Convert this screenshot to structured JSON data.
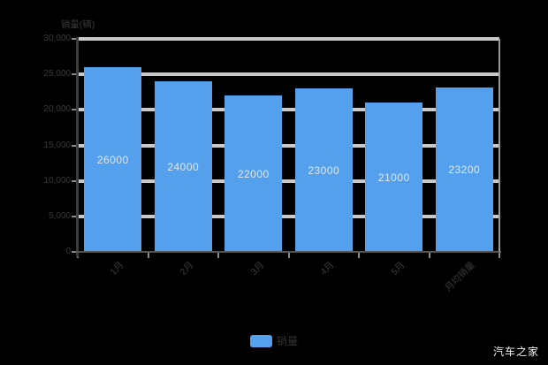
{
  "chart_data": {
    "type": "bar",
    "title": "",
    "y_axis_name": "销量(辆)",
    "categories": [
      "1月",
      "2月",
      "3月",
      "4月",
      "5月",
      "月均销量"
    ],
    "values": [
      26000,
      24000,
      22000,
      23000,
      21000,
      23200
    ],
    "bar_labels": [
      "26000",
      "24000",
      "22000",
      "23000",
      "21000",
      "23200"
    ],
    "series": [
      {
        "name": "销量",
        "values": [
          26000,
          24000,
          22000,
          23000,
          21000,
          23200
        ]
      }
    ],
    "y_ticks": [
      {
        "label": "30,000",
        "value": 30000
      },
      {
        "label": "25,000",
        "value": 25000
      },
      {
        "label": "20,000",
        "value": 20000
      },
      {
        "label": "15,000",
        "value": 15000
      },
      {
        "label": "10,000",
        "value": 10000
      },
      {
        "label": "5,000",
        "value": 5000
      },
      {
        "label": "0",
        "value": 0
      }
    ],
    "ylim": [
      0,
      30000
    ],
    "grid": true,
    "legend_position": "bottom",
    "legend": [
      {
        "label": "销量",
        "color": "#55a0ec"
      }
    ]
  },
  "colors": {
    "background": "#000000",
    "bar": "#55a0ec",
    "gridline": "#c9c9c9",
    "axis_text": "#3a3a3a",
    "bar_label": "#dfe8f3",
    "watermark": "#f5f5f5"
  },
  "watermark": "汽车之家"
}
